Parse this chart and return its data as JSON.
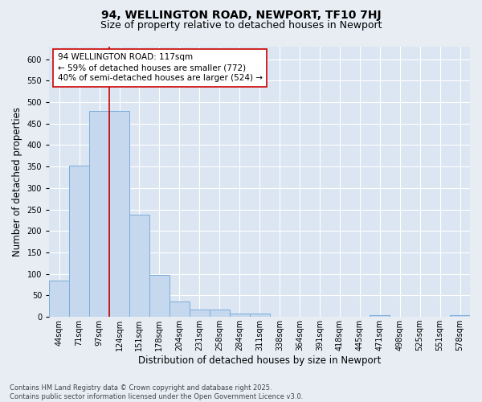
{
  "title": "94, WELLINGTON ROAD, NEWPORT, TF10 7HJ",
  "subtitle": "Size of property relative to detached houses in Newport",
  "xlabel": "Distribution of detached houses by size in Newport",
  "ylabel": "Number of detached properties",
  "categories": [
    "44sqm",
    "71sqm",
    "97sqm",
    "124sqm",
    "151sqm",
    "178sqm",
    "204sqm",
    "231sqm",
    "258sqm",
    "284sqm",
    "311sqm",
    "338sqm",
    "364sqm",
    "391sqm",
    "418sqm",
    "445sqm",
    "471sqm",
    "498sqm",
    "525sqm",
    "551sqm",
    "578sqm"
  ],
  "values": [
    84,
    352,
    480,
    480,
    238,
    97,
    35,
    18,
    18,
    8,
    8,
    0,
    0,
    0,
    0,
    0,
    4,
    0,
    0,
    0,
    4
  ],
  "bar_color": "#c5d8ee",
  "bar_edge_color": "#7aaddb",
  "vline_x": 2.5,
  "vline_color": "#cc0000",
  "annotation_text": "94 WELLINGTON ROAD: 117sqm\n← 59% of detached houses are smaller (772)\n40% of semi-detached houses are larger (524) →",
  "annotation_box_facecolor": "#ffffff",
  "annotation_box_edgecolor": "#cc0000",
  "background_color": "#e8edf4",
  "plot_bg_color": "#dce6f2",
  "grid_color": "#ffffff",
  "footnote": "Contains HM Land Registry data © Crown copyright and database right 2025.\nContains public sector information licensed under the Open Government Licence v3.0.",
  "ylim": [
    0,
    630
  ],
  "ytick_step": 50,
  "title_fontsize": 10,
  "subtitle_fontsize": 9,
  "axis_label_fontsize": 8.5,
  "tick_fontsize": 7,
  "annotation_fontsize": 7.5,
  "footnote_fontsize": 6
}
